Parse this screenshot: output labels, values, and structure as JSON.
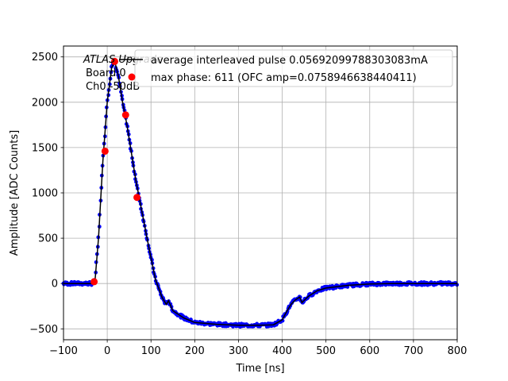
{
  "chart_data": {
    "type": "scatter",
    "xlabel": "Time [ns]",
    "ylabel": "Amplitude [ADC Counts]",
    "xlim": [
      -100,
      800
    ],
    "ylim": [
      -620,
      2620
    ],
    "xticks": [
      -100,
      0,
      100,
      200,
      300,
      400,
      500,
      600,
      700,
      800
    ],
    "yticks": [
      -500,
      0,
      500,
      1000,
      1500,
      2000,
      2500
    ],
    "grid": true,
    "annotation": [
      "ATLAS Upgrade",
      "Board 0",
      "Ch0 -50dB"
    ],
    "legend": {
      "placement": "top-right",
      "entries": [
        {
          "label": "average interleaved pulse 0.05692099788303083mA",
          "marker": "line",
          "color": "#000000"
        },
        {
          "label": "max phase: 611 (OFC amp=0.0758946638440411)",
          "marker": "circle",
          "color": "#ff0000"
        }
      ]
    },
    "series": [
      {
        "name": "average interleaved pulse 0.05692099788303083mA",
        "style": "line+dense-blue-points",
        "line_color": "#000000",
        "point_color": "#0000ff",
        "x": [
          -100,
          -50,
          -35,
          -28,
          -20,
          -10,
          0,
          10,
          17,
          25,
          35,
          45,
          55,
          65,
          75,
          85,
          95,
          110,
          125,
          135,
          140,
          150,
          175,
          200,
          250,
          300,
          350,
          380,
          400,
          410,
          420,
          430,
          440,
          445,
          460,
          480,
          500,
          550,
          600,
          650,
          700,
          750,
          800
        ],
        "y": [
          0,
          0,
          0,
          30,
          500,
          1350,
          2000,
          2380,
          2450,
          2300,
          2000,
          1750,
          1450,
          1150,
          900,
          650,
          400,
          50,
          -150,
          -230,
          -190,
          -300,
          -380,
          -430,
          -450,
          -460,
          -460,
          -455,
          -400,
          -310,
          -230,
          -180,
          -150,
          -210,
          -140,
          -80,
          -50,
          -20,
          -5,
          0,
          0,
          0,
          0
        ]
      },
      {
        "name": "max phase: 611 (OFC amp=0.0758946638440411)",
        "type": "scatter",
        "color": "#ff0000",
        "x": [
          -30,
          -5,
          17,
          42,
          68
        ],
        "y": [
          20,
          1460,
          2450,
          1860,
          950
        ]
      }
    ]
  }
}
